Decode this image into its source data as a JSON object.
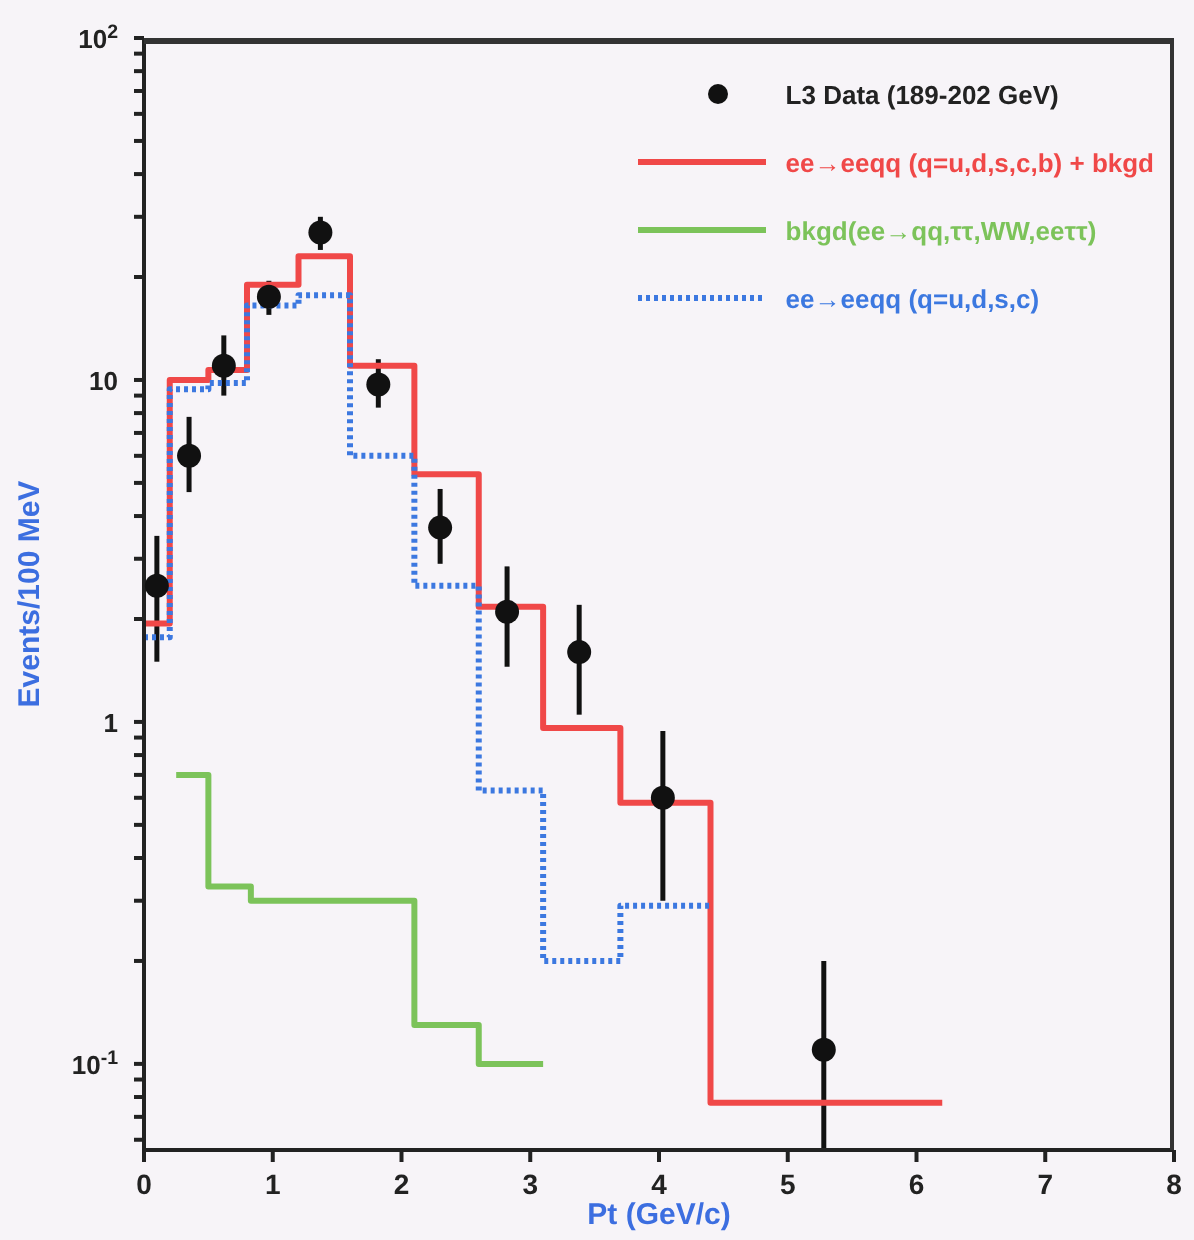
{
  "chart_data": {
    "type": "step",
    "xlabel": "Pt (GeV/c)",
    "ylabel": "Events/100 MeV",
    "log": "y",
    "legend": "top right",
    "xlim": [
      0,
      8
    ],
    "xticks": [
      0,
      1,
      2,
      3,
      4,
      5,
      6,
      7,
      8
    ],
    "ylim": [
      0.056,
      100
    ],
    "yticks": [
      {
        "value": 0.06,
        "label": null
      },
      {
        "value": 0.07,
        "label": null
      },
      {
        "value": 0.08,
        "label": null
      },
      {
        "value": 0.09,
        "label": null
      },
      {
        "value": 0.1,
        "label": "10$^{-1}$"
      },
      {
        "value": 0.2,
        "label": null
      },
      {
        "value": 0.3,
        "label": null
      },
      {
        "value": 0.4,
        "label": null
      },
      {
        "value": 0.5,
        "label": null
      },
      {
        "value": 0.6,
        "label": null
      },
      {
        "value": 0.7,
        "label": null
      },
      {
        "value": 0.8,
        "label": null
      },
      {
        "value": 0.9,
        "label": null
      },
      1,
      {
        "value": 2,
        "label": null
      },
      {
        "value": 3,
        "label": null
      },
      {
        "value": 4,
        "label": null
      },
      {
        "value": 5,
        "label": null
      },
      {
        "value": 6,
        "label": null
      },
      {
        "value": 7,
        "label": null
      },
      {
        "value": 8,
        "label": null
      },
      {
        "value": 9,
        "label": null
      },
      10,
      {
        "value": 20,
        "label": null
      },
      {
        "value": 30,
        "label": null
      },
      {
        "value": 40,
        "label": null
      },
      {
        "value": 50,
        "label": null
      },
      {
        "value": 60,
        "label": null
      },
      {
        "value": 70,
        "label": null
      },
      {
        "value": 80,
        "label": null
      },
      {
        "value": 90,
        "label": null
      },
      {
        "value": 100,
        "label": "10$^{2}$"
      }
    ],
    "series": [
      {
        "name": "L3 Data (189-202 GeV)",
        "type": "scatter",
        "marker": "circle",
        "color": "#111111",
        "x": [
          0.1,
          0.35,
          0.62,
          0.97,
          1.37,
          1.82,
          2.3,
          2.82,
          3.38,
          4.03,
          5.28
        ],
        "values": [
          2.5,
          6,
          11,
          17.5,
          27,
          9.7,
          3.7,
          2.1,
          1.6,
          0.6,
          0.11
        ],
        "errors": [
          [
            1.5,
            3.5
          ],
          [
            4.7,
            7.8
          ],
          [
            9,
            13.5
          ],
          [
            15.5,
            19.5
          ],
          [
            24,
            30
          ],
          [
            8.3,
            11.5
          ],
          [
            2.9,
            4.8
          ],
          [
            1.45,
            2.85
          ],
          [
            1.05,
            2.2
          ],
          [
            0.3,
            0.94
          ],
          [
            0.056,
            0.2
          ]
        ]
      },
      {
        "name": "ee→eeqq (q=u,d,s,c,b) + bkgd",
        "color": "#f04848",
        "x": [
          0,
          0.2,
          0.5,
          0.8,
          1.2,
          1.6,
          2.1,
          2.6,
          3.1,
          3.7,
          4.4,
          6.2
        ],
        "values": [
          1.94,
          10,
          10.7,
          19,
          23,
          11,
          5.3,
          2.17,
          0.96,
          0.58,
          0.077,
          0.077
        ]
      },
      {
        "name": "bkgd(ee→qq,ττ,WW,eeττ)",
        "color": "#7cc35a",
        "x": [
          0.25,
          0.5,
          0.83,
          2.1,
          2.6,
          3.1
        ],
        "values": [
          0.7,
          0.33,
          0.3,
          0.13,
          0.1,
          0.1
        ]
      },
      {
        "name": "ee→eeqq (q=u,d,s,c)",
        "color": "#3c78e0",
        "line_style": "dotted",
        "x": [
          0,
          0.2,
          0.5,
          0.8,
          1.2,
          1.6,
          2.1,
          2.6,
          3.1,
          3.7,
          4.4
        ],
        "values": [
          1.77,
          9.4,
          9.8,
          16.5,
          17.7,
          6,
          2.5,
          0.63,
          0.2,
          0.29,
          0.29
        ]
      }
    ]
  }
}
